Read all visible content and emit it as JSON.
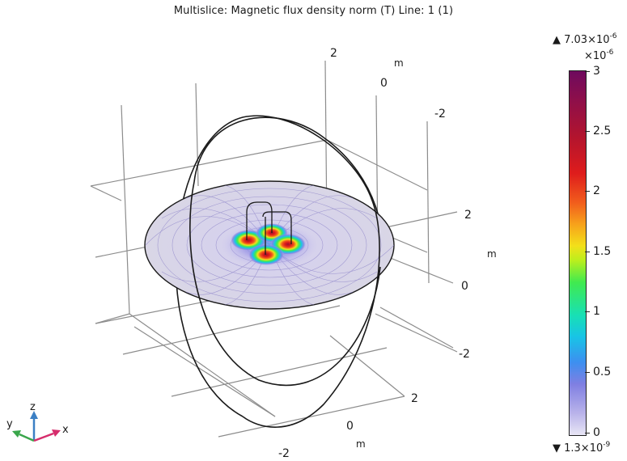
{
  "title": "Multislice: Magnetic flux density norm (T)  Line: 1 (1)",
  "axes": {
    "z_ticks": [
      "2",
      "0",
      "-2"
    ],
    "y_ticks": [
      "2",
      "0",
      "-2"
    ],
    "x_ticks": [
      "2",
      "0",
      "-2"
    ],
    "unit": "m"
  },
  "colorbar": {
    "max_prefix": "▲ 7.03×10",
    "max_exp": "-6",
    "multiplier_prefix": "×10",
    "multiplier_exp": "-6",
    "ticks": [
      "3",
      "2.5",
      "2",
      "1.5",
      "1",
      "0.5",
      "0"
    ],
    "min_prefix": "▼ 1.3×10",
    "min_exp": "-9",
    "colors": [
      "#e8e6f5",
      "#7f7fe2",
      "#18c4e6",
      "#41ea4f",
      "#f3e01a",
      "#f15c1c",
      "#de1c1c",
      "#6e0a5e"
    ]
  },
  "triad": {
    "z_label": "z",
    "y_label": "y",
    "x_label": "x",
    "z_color": "#3b7fc4",
    "y_color": "#3aa64b",
    "x_color": "#d62d6c"
  }
}
